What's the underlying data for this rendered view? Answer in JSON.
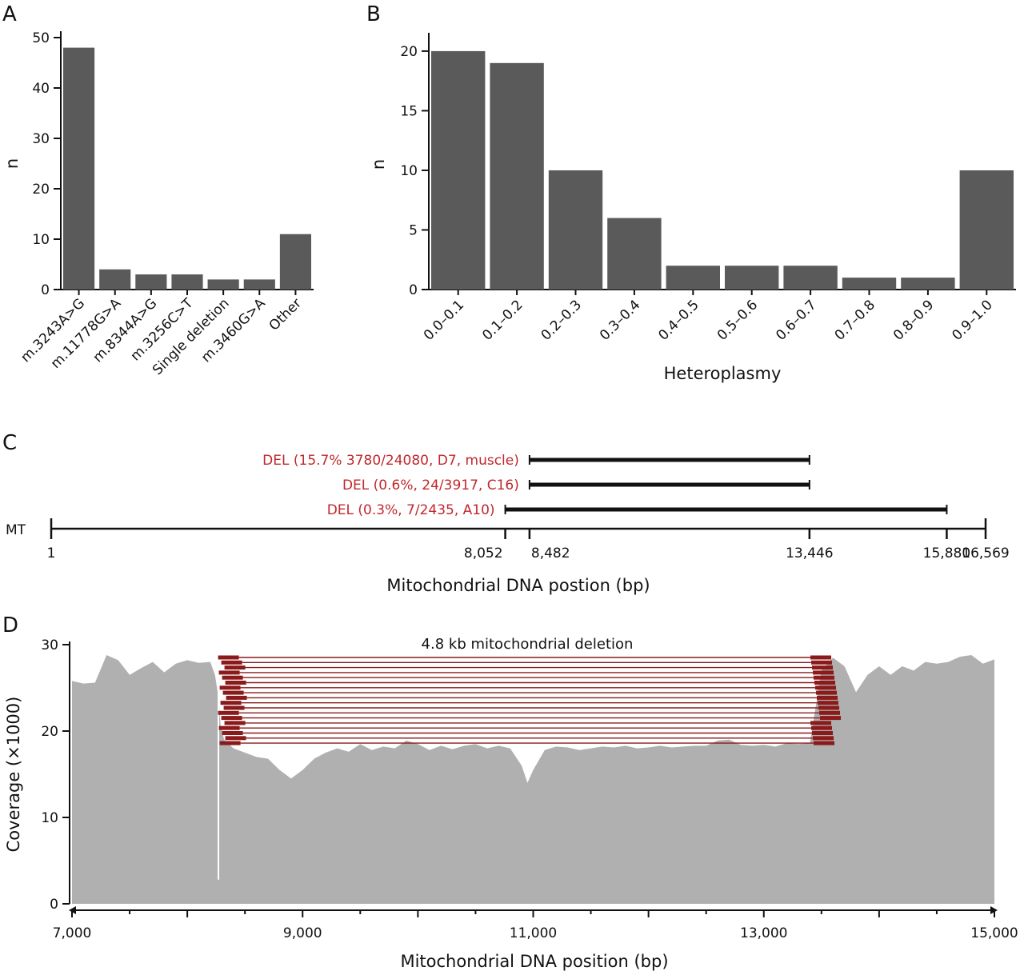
{
  "panels": {
    "a": {
      "letter": "A"
    },
    "b": {
      "letter": "B"
    },
    "c": {
      "letter": "C"
    },
    "d": {
      "letter": "D"
    }
  },
  "chart_data": [
    {
      "panel": "A",
      "type": "bar",
      "categories": [
        "m.3243A>G",
        "m.11778G>A",
        "m.8344A>G",
        "m.3256C>T",
        "Single deletion",
        "m.3460G>A",
        "Other"
      ],
      "values": [
        48,
        4,
        3,
        3,
        2,
        2,
        11
      ],
      "xlabel": "",
      "ylabel": "n",
      "ylim": [
        0,
        50
      ],
      "yticks": [
        0,
        10,
        20,
        30,
        40,
        50
      ],
      "bar_color": "#595a59",
      "grid": false
    },
    {
      "panel": "B",
      "type": "bar",
      "categories": [
        "0.0–0.1",
        "0.1–0.2",
        "0.2–0.3",
        "0.3–0.4",
        "0.4–0.5",
        "0.5–0.6",
        "0.6–0.7",
        "0.7–0.8",
        "0.8–0.9",
        "0.9–1.0"
      ],
      "values": [
        20,
        19,
        10,
        6,
        2,
        2,
        2,
        1,
        1,
        10
      ],
      "xlabel": "Heteroplasmy",
      "ylabel": "n",
      "ylim": [
        0,
        21
      ],
      "yticks": [
        0,
        5,
        10,
        15,
        20
      ],
      "bar_color": "#595a59",
      "grid": false
    },
    {
      "panel": "C",
      "type": "interval",
      "track_label": "MT",
      "xlim": [
        1,
        16569
      ],
      "xlabel": "Mitochondrial DNA postion (bp)",
      "tick_labels": [
        {
          "value": 1,
          "label": "1"
        },
        {
          "value": 8052,
          "label": "8,052"
        },
        {
          "value": 8482,
          "label": "8,482"
        },
        {
          "value": 13446,
          "label": "13,446"
        },
        {
          "value": 15880,
          "label": "15,880"
        },
        {
          "value": 16569,
          "label": "16,569"
        }
      ],
      "deletions": [
        {
          "label": "DEL (15.7% 3780/24080, D7, muscle)",
          "start": 8482,
          "end": 13446
        },
        {
          "label": "DEL (0.6%, 24/3917, C16)",
          "start": 8482,
          "end": 13446
        },
        {
          "label": "DEL (0.3%, 7/2435, A10)",
          "start": 8052,
          "end": 15880
        }
      ],
      "label_color": "#c0282d"
    },
    {
      "panel": "D",
      "type": "area",
      "xlabel": "Mitochondrial DNA position (bp)",
      "ylabel": "Coverage (×1000)",
      "xlim": [
        7000,
        15000
      ],
      "ylim": [
        0,
        30
      ],
      "xticks": [
        7000,
        9000,
        11000,
        13000,
        15000
      ],
      "xtick_labels": [
        "7,000",
        "9,000",
        "11,000",
        "13,000",
        "15,000"
      ],
      "yticks": [
        0,
        10,
        20,
        30
      ],
      "annotation": "4.8 kb mitochondrial deletion",
      "deletion_span": [
        8482,
        13446
      ],
      "area_color": "#b0b0b0",
      "read_color": "#8b1a1a",
      "x": [
        7000,
        7100,
        7200,
        7300,
        7400,
        7500,
        7600,
        7700,
        7800,
        7900,
        8000,
        8100,
        8200,
        8240,
        8270,
        8290,
        8320,
        8400,
        8500,
        8600,
        8700,
        8800,
        8900,
        9000,
        9100,
        9200,
        9300,
        9400,
        9500,
        9600,
        9700,
        9800,
        9900,
        10000,
        10100,
        10200,
        10300,
        10400,
        10500,
        10600,
        10700,
        10800,
        10900,
        10950,
        11000,
        11100,
        11200,
        11300,
        11400,
        11500,
        11600,
        11700,
        11800,
        11900,
        12000,
        12100,
        12200,
        12300,
        12400,
        12500,
        12600,
        12700,
        12800,
        12900,
        13000,
        13100,
        13200,
        13300,
        13400,
        13500,
        13600,
        13700,
        13800,
        13900,
        14000,
        14100,
        14200,
        14300,
        14400,
        14500,
        14600,
        14700,
        14800,
        14900,
        15000
      ],
      "y": [
        25.8,
        25.5,
        25.6,
        28.8,
        28.2,
        26.5,
        27.3,
        28.0,
        26.8,
        27.8,
        28.2,
        27.9,
        28.0,
        26.5,
        24.0,
        20.5,
        19.0,
        18.0,
        17.5,
        17.0,
        16.8,
        15.5,
        14.5,
        15.5,
        16.8,
        17.5,
        18.0,
        17.6,
        18.5,
        17.8,
        18.2,
        18.0,
        18.9,
        18.5,
        17.8,
        18.3,
        17.9,
        18.3,
        18.5,
        18.0,
        18.3,
        18.0,
        16.0,
        14.0,
        15.5,
        17.8,
        18.2,
        18.1,
        17.8,
        18.0,
        18.2,
        18.1,
        18.3,
        18.0,
        18.1,
        18.3,
        18.1,
        18.2,
        18.3,
        18.3,
        18.9,
        19.0,
        18.4,
        18.3,
        18.4,
        18.2,
        18.6,
        18.5,
        18.6,
        27.0,
        28.5,
        27.5,
        24.5,
        26.5,
        27.5,
        26.5,
        27.5,
        27.0,
        28.0,
        27.8,
        28.0,
        28.6,
        28.8,
        27.8,
        28.3
      ]
    }
  ]
}
